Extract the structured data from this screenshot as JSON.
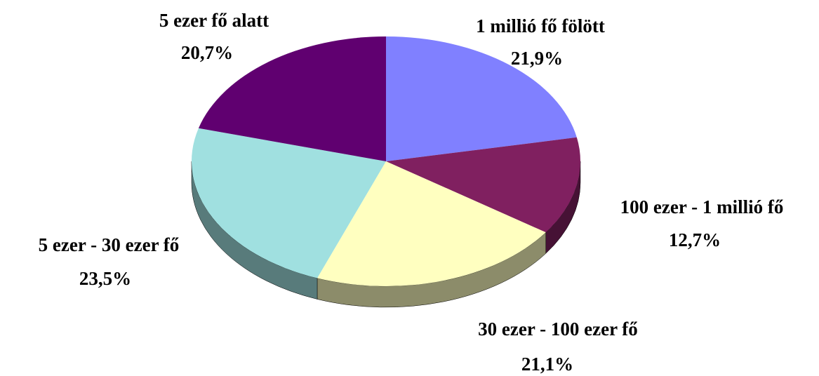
{
  "chart_data": {
    "type": "pie",
    "categories": [
      "1 millió fő fölött",
      "100 ezer - 1 millió fő",
      "30 ezer - 100 ezer fő",
      "5 ezer - 30 ezer fő",
      "5 ezer fő alatt"
    ],
    "values": [
      21.9,
      12.7,
      21.1,
      23.5,
      20.7
    ],
    "value_labels": [
      "21,9%",
      "12,7%",
      "21,1%",
      "23,5%",
      "20,7%"
    ],
    "colors": [
      "#8080ff",
      "#802060",
      "#ffffc0",
      "#a0e0e0",
      "#600070"
    ]
  }
}
